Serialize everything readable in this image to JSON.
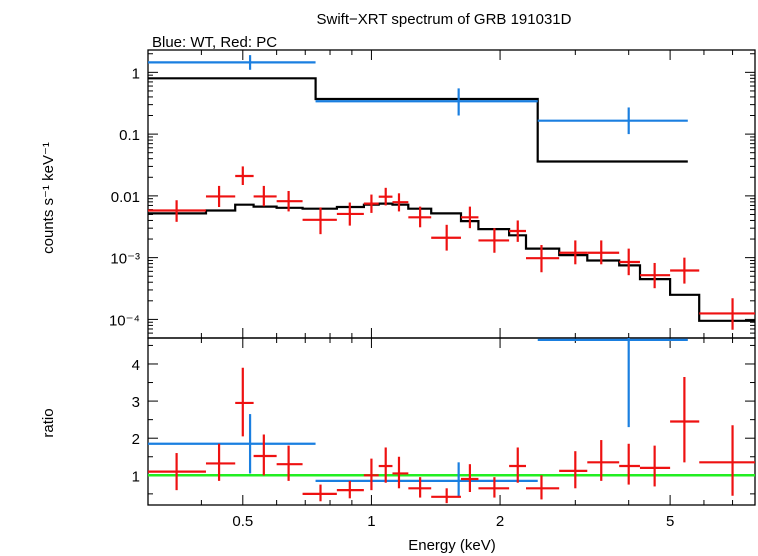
{
  "title": "Swift−XRT spectrum of GRB 191031D",
  "subtitle": "Blue: WT, Red: PC",
  "colors": {
    "wt": "#1a7fe0",
    "pc": "#ee1111",
    "model": "#000000",
    "unity": "#22ee22"
  },
  "chart_data": [
    {
      "type": "scatter",
      "panel": "spectrum",
      "xlabel": "Energy (keV)",
      "ylabel": "counts s⁻¹ keV⁻¹",
      "xscale": "log",
      "yscale": "log",
      "xlim": [
        0.3,
        7.9
      ],
      "ylim": [
        5e-05,
        2.3
      ],
      "yticks": [
        {
          "v": 1,
          "label": "1"
        },
        {
          "v": 0.1,
          "label": "0.1"
        },
        {
          "v": 0.01,
          "label": "0.01"
        },
        {
          "v": 0.001,
          "label": "10⁻³"
        },
        {
          "v": 0.0001,
          "label": "10⁻⁴"
        }
      ],
      "series": [
        {
          "name": "WT",
          "color": "#1a7fe0",
          "points": [
            {
              "x": 0.52,
              "xlo": 0.3,
              "xhi": 0.74,
              "y": 1.45,
              "ylo": 1.1,
              "yhi": 1.9
            },
            {
              "x": 1.6,
              "xlo": 0.74,
              "xhi": 2.45,
              "y": 0.34,
              "ylo": 0.2,
              "yhi": 0.55
            },
            {
              "x": 4.0,
              "xlo": 2.45,
              "xhi": 5.5,
              "y": 0.165,
              "ylo": 0.1,
              "yhi": 0.27
            }
          ]
        },
        {
          "name": "PC",
          "color": "#ee1111",
          "points": [
            {
              "x": 0.35,
              "xlo": 0.3,
              "xhi": 0.41,
              "y": 0.0058,
              "ylo": 0.0038,
              "yhi": 0.0085
            },
            {
              "x": 0.44,
              "xlo": 0.41,
              "xhi": 0.48,
              "y": 0.0098,
              "ylo": 0.0066,
              "yhi": 0.0145
            },
            {
              "x": 0.5,
              "xlo": 0.48,
              "xhi": 0.53,
              "y": 0.021,
              "ylo": 0.015,
              "yhi": 0.03
            },
            {
              "x": 0.56,
              "xlo": 0.53,
              "xhi": 0.6,
              "y": 0.0098,
              "ylo": 0.0068,
              "yhi": 0.0145
            },
            {
              "x": 0.64,
              "xlo": 0.6,
              "xhi": 0.69,
              "y": 0.0082,
              "ylo": 0.0056,
              "yhi": 0.012
            },
            {
              "x": 0.76,
              "xlo": 0.69,
              "xhi": 0.83,
              "y": 0.0041,
              "ylo": 0.0024,
              "yhi": 0.0065
            },
            {
              "x": 0.89,
              "xlo": 0.83,
              "xhi": 0.96,
              "y": 0.0051,
              "ylo": 0.0033,
              "yhi": 0.0078
            },
            {
              "x": 1.0,
              "xlo": 0.96,
              "xhi": 1.04,
              "y": 0.0075,
              "ylo": 0.0053,
              "yhi": 0.0105
            },
            {
              "x": 1.08,
              "xlo": 1.04,
              "xhi": 1.12,
              "y": 0.0097,
              "ylo": 0.007,
              "yhi": 0.0135
            },
            {
              "x": 1.16,
              "xlo": 1.12,
              "xhi": 1.22,
              "y": 0.0079,
              "ylo": 0.0056,
              "yhi": 0.011
            },
            {
              "x": 1.3,
              "xlo": 1.22,
              "xhi": 1.38,
              "y": 0.0045,
              "ylo": 0.0031,
              "yhi": 0.0067
            },
            {
              "x": 1.5,
              "xlo": 1.38,
              "xhi": 1.62,
              "y": 0.0021,
              "ylo": 0.0013,
              "yhi": 0.0034
            },
            {
              "x": 1.7,
              "xlo": 1.62,
              "xhi": 1.78,
              "y": 0.0045,
              "ylo": 0.003,
              "yhi": 0.0067
            },
            {
              "x": 1.94,
              "xlo": 1.78,
              "xhi": 2.1,
              "y": 0.0019,
              "ylo": 0.0012,
              "yhi": 0.003
            },
            {
              "x": 2.2,
              "xlo": 2.1,
              "xhi": 2.3,
              "y": 0.0027,
              "ylo": 0.0018,
              "yhi": 0.004
            },
            {
              "x": 2.5,
              "xlo": 2.3,
              "xhi": 2.75,
              "y": 0.00098,
              "ylo": 0.00058,
              "yhi": 0.0016
            },
            {
              "x": 3.0,
              "xlo": 2.75,
              "xhi": 3.2,
              "y": 0.0012,
              "ylo": 0.00078,
              "yhi": 0.0019
            },
            {
              "x": 3.45,
              "xlo": 3.2,
              "xhi": 3.8,
              "y": 0.0012,
              "ylo": 0.00078,
              "yhi": 0.0019
            },
            {
              "x": 4.0,
              "xlo": 3.8,
              "xhi": 4.25,
              "y": 0.00085,
              "ylo": 0.00052,
              "yhi": 0.0014
            },
            {
              "x": 4.6,
              "xlo": 4.25,
              "xhi": 5.0,
              "y": 0.00052,
              "ylo": 0.00032,
              "yhi": 0.00082
            },
            {
              "x": 5.4,
              "xlo": 5.0,
              "xhi": 5.85,
              "y": 0.00062,
              "ylo": 0.00038,
              "yhi": 0.001
            },
            {
              "x": 7.0,
              "xlo": 5.85,
              "xhi": 7.9,
              "y": 0.000125,
              "ylo": 6.8e-05,
              "yhi": 0.00022
            }
          ]
        }
      ],
      "models": [
        {
          "name": "WT model",
          "color": "#000000",
          "edges": [
            0.3,
            0.74,
            2.45,
            5.5
          ],
          "values": [
            0.8,
            0.37,
            0.036
          ]
        },
        {
          "name": "PC model",
          "color": "#000000",
          "edges": [
            0.3,
            0.41,
            0.48,
            0.53,
            0.6,
            0.69,
            0.83,
            0.96,
            1.04,
            1.12,
            1.22,
            1.38,
            1.62,
            1.78,
            2.1,
            2.3,
            2.75,
            3.2,
            3.8,
            4.25,
            5.0,
            5.85,
            7.9
          ],
          "values": [
            0.0052,
            0.0058,
            0.0072,
            0.0067,
            0.0064,
            0.0062,
            0.0066,
            0.0072,
            0.0075,
            0.0072,
            0.0062,
            0.0052,
            0.0039,
            0.0029,
            0.0023,
            0.0014,
            0.0011,
            0.0009,
            0.00075,
            0.00045,
            0.00025,
            9.5e-05
          ]
        }
      ]
    },
    {
      "type": "scatter",
      "panel": "ratio",
      "xlabel": "Energy (keV)",
      "ylabel": "ratio",
      "xscale": "log",
      "yscale": "linear",
      "xlim": [
        0.3,
        7.9
      ],
      "ylim": [
        0.2,
        4.7
      ],
      "xticks": [
        {
          "v": 0.5,
          "label": "0.5"
        },
        {
          "v": 1,
          "label": "1"
        },
        {
          "v": 2,
          "label": "2"
        },
        {
          "v": 5,
          "label": "5"
        }
      ],
      "yticks": [
        {
          "v": 1,
          "label": "1"
        },
        {
          "v": 2,
          "label": "2"
        },
        {
          "v": 3,
          "label": "3"
        },
        {
          "v": 4,
          "label": "4"
        }
      ],
      "unity_line": 1,
      "series": [
        {
          "name": "WT",
          "color": "#1a7fe0",
          "points": [
            {
              "x": 0.52,
              "xlo": 0.3,
              "xhi": 0.74,
              "y": 1.85,
              "ylo": 1.05,
              "yhi": 2.65
            },
            {
              "x": 1.6,
              "xlo": 0.74,
              "xhi": 2.45,
              "y": 0.85,
              "ylo": 0.4,
              "yhi": 1.35
            },
            {
              "x": 4.0,
              "xlo": 2.45,
              "xhi": 5.5,
              "y": 4.65,
              "ylo": 2.3,
              "yhi": 4.7
            }
          ]
        },
        {
          "name": "PC",
          "color": "#ee1111",
          "points": [
            {
              "x": 0.35,
              "xlo": 0.3,
              "xhi": 0.41,
              "y": 1.1,
              "ylo": 0.6,
              "yhi": 1.6
            },
            {
              "x": 0.44,
              "xlo": 0.41,
              "xhi": 0.48,
              "y": 1.32,
              "ylo": 0.85,
              "yhi": 1.85
            },
            {
              "x": 0.5,
              "xlo": 0.48,
              "xhi": 0.53,
              "y": 2.95,
              "ylo": 2.05,
              "yhi": 3.9
            },
            {
              "x": 0.56,
              "xlo": 0.53,
              "xhi": 0.6,
              "y": 1.52,
              "ylo": 1.0,
              "yhi": 2.1
            },
            {
              "x": 0.64,
              "xlo": 0.6,
              "xhi": 0.69,
              "y": 1.3,
              "ylo": 0.85,
              "yhi": 1.8
            },
            {
              "x": 0.76,
              "xlo": 0.69,
              "xhi": 0.83,
              "y": 0.5,
              "ylo": 0.3,
              "yhi": 0.75
            },
            {
              "x": 0.89,
              "xlo": 0.83,
              "xhi": 0.96,
              "y": 0.6,
              "ylo": 0.38,
              "yhi": 0.85
            },
            {
              "x": 1.0,
              "xlo": 0.96,
              "xhi": 1.04,
              "y": 1.0,
              "ylo": 0.6,
              "yhi": 1.45
            },
            {
              "x": 1.08,
              "xlo": 1.04,
              "xhi": 1.12,
              "y": 1.25,
              "ylo": 0.8,
              "yhi": 1.75
            },
            {
              "x": 1.16,
              "xlo": 1.12,
              "xhi": 1.22,
              "y": 1.05,
              "ylo": 0.65,
              "yhi": 1.5
            },
            {
              "x": 1.3,
              "xlo": 1.22,
              "xhi": 1.38,
              "y": 0.65,
              "ylo": 0.4,
              "yhi": 0.95
            },
            {
              "x": 1.5,
              "xlo": 1.38,
              "xhi": 1.62,
              "y": 0.42,
              "ylo": 0.25,
              "yhi": 0.65
            },
            {
              "x": 1.7,
              "xlo": 1.62,
              "xhi": 1.78,
              "y": 0.9,
              "ylo": 0.55,
              "yhi": 1.3
            },
            {
              "x": 1.94,
              "xlo": 1.78,
              "xhi": 2.1,
              "y": 0.65,
              "ylo": 0.4,
              "yhi": 0.95
            },
            {
              "x": 2.2,
              "xlo": 2.1,
              "xhi": 2.3,
              "y": 1.25,
              "ylo": 0.8,
              "yhi": 1.75
            },
            {
              "x": 2.5,
              "xlo": 2.3,
              "xhi": 2.75,
              "y": 0.65,
              "ylo": 0.35,
              "yhi": 1.0
            },
            {
              "x": 3.0,
              "xlo": 2.75,
              "xhi": 3.2,
              "y": 1.12,
              "ylo": 0.65,
              "yhi": 1.65
            },
            {
              "x": 3.45,
              "xlo": 3.2,
              "xhi": 3.8,
              "y": 1.35,
              "ylo": 0.85,
              "yhi": 1.95
            },
            {
              "x": 4.0,
              "xlo": 3.8,
              "xhi": 4.25,
              "y": 1.25,
              "ylo": 0.75,
              "yhi": 1.85
            },
            {
              "x": 4.6,
              "xlo": 4.25,
              "xhi": 5.0,
              "y": 1.2,
              "ylo": 0.7,
              "yhi": 1.8
            },
            {
              "x": 5.4,
              "xlo": 5.0,
              "xhi": 5.85,
              "y": 2.45,
              "ylo": 1.35,
              "yhi": 3.65
            },
            {
              "x": 7.0,
              "xlo": 5.85,
              "xhi": 7.9,
              "y": 1.35,
              "ylo": 0.45,
              "yhi": 2.35
            }
          ]
        }
      ]
    }
  ]
}
